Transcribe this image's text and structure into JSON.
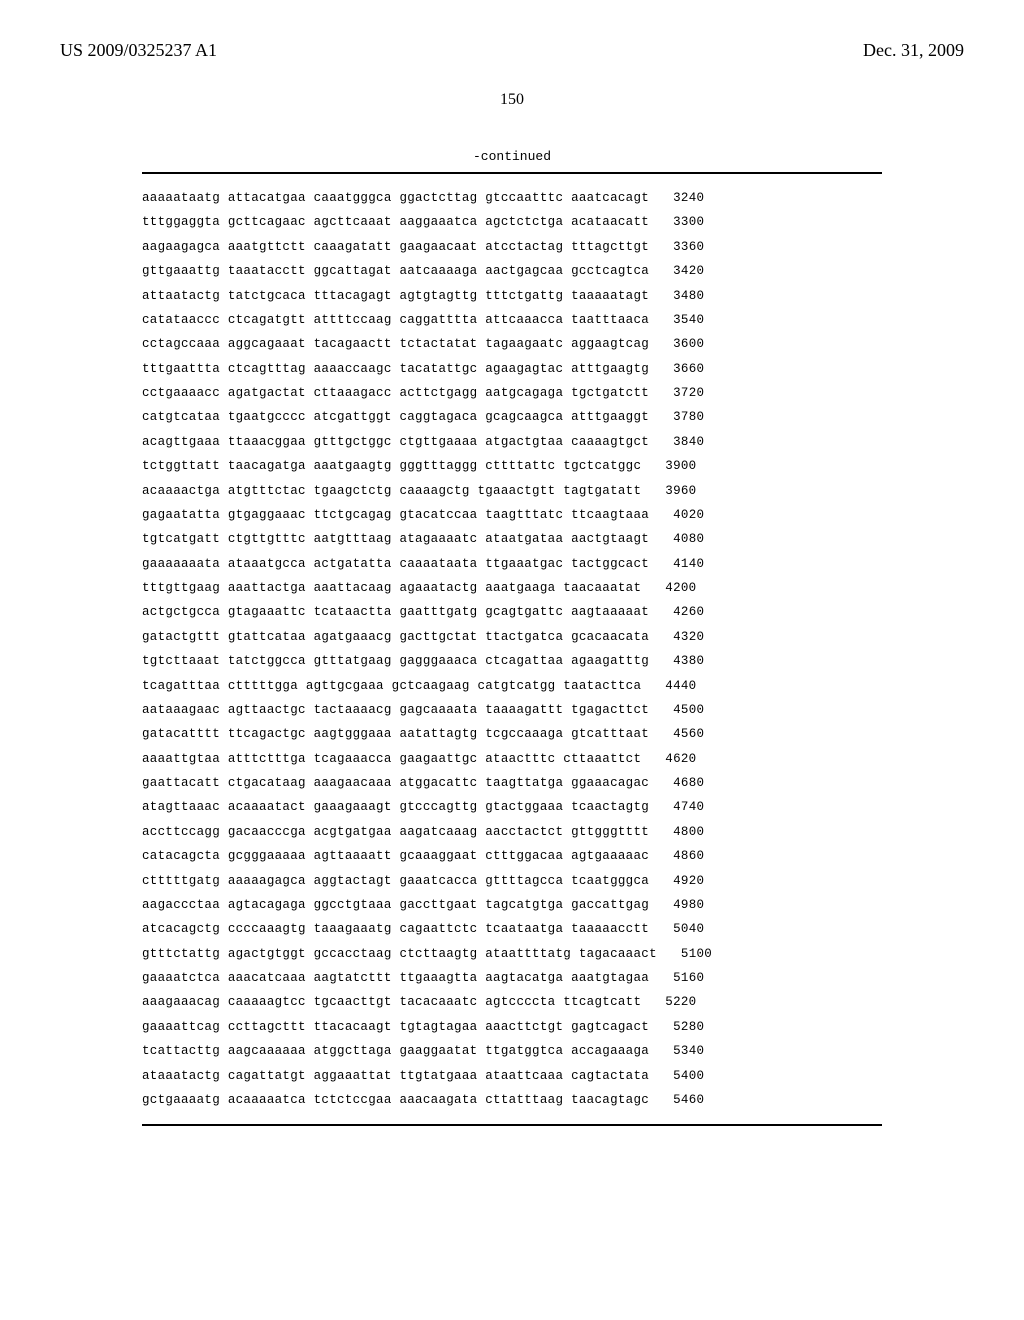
{
  "header": {
    "pub_number": "US 2009/0325237 A1",
    "pub_date": "Dec. 31, 2009"
  },
  "page_number": "150",
  "continued_label": "-continued",
  "sequence": [
    {
      "text": "aaaaataatg attacatgaa caaatgggca ggactcttag gtccaatttc aaatcacagt",
      "num": "3240"
    },
    {
      "text": "tttggaggta gcttcagaac agcttcaaat aaggaaatca agctctctga acataacatt",
      "num": "3300"
    },
    {
      "text": "aagaagagca aaatgttctt caaagatatt gaagaacaat atcctactag tttagcttgt",
      "num": "3360"
    },
    {
      "text": "gttgaaattg taaatacctt ggcattagat aatcaaaaga aactgagcaa gcctcagtca",
      "num": "3420"
    },
    {
      "text": "attaatactg tatctgcaca tttacagagt agtgtagttg tttctgattg taaaaatagt",
      "num": "3480"
    },
    {
      "text": "catataaccc ctcagatgtt attttccaag caggatttta attcaaacca taatttaaca",
      "num": "3540"
    },
    {
      "text": "cctagccaaa aggcagaaat tacagaactt tctactatat tagaagaatc aggaagtcag",
      "num": "3600"
    },
    {
      "text": "tttgaattta ctcagtttag aaaaccaagc tacatattgc agaagagtac atttgaagtg",
      "num": "3660"
    },
    {
      "text": "cctgaaaacc agatgactat cttaaagacc acttctgagg aatgcagaga tgctgatctt",
      "num": "3720"
    },
    {
      "text": "catgtcataa tgaatgcccc atcgattggt caggtagaca gcagcaagca atttgaaggt",
      "num": "3780"
    },
    {
      "text": "acagttgaaa ttaaacggaa gtttgctggc ctgttgaaaa atgactgtaa caaaagtgct",
      "num": "3840"
    },
    {
      "text": "tctggttatt taacagatga aaatgaagtg gggtttaggg cttttattc tgctcatggc",
      "num": "3900"
    },
    {
      "text": "acaaaactga atgtttctac tgaagctctg caaaagctg tgaaactgtt tagtgatatt",
      "num": "3960"
    },
    {
      "text": "gagaatatta gtgaggaaac ttctgcagag gtacatccaa taagtttatc ttcaagtaaa",
      "num": "4020"
    },
    {
      "text": "tgtcatgatt ctgttgtttc aatgtttaag atagaaaatc ataatgataa aactgtaagt",
      "num": "4080"
    },
    {
      "text": "gaaaaaaata ataaatgcca actgatatta caaaataata ttgaaatgac tactggcact",
      "num": "4140"
    },
    {
      "text": "tttgttgaag aaattactga aaattacaag agaaatactg aaatgaaga taacaaatat",
      "num": "4200"
    },
    {
      "text": "actgctgcca gtagaaattc tcataactta gaatttgatg gcagtgattc aagtaaaaat",
      "num": "4260"
    },
    {
      "text": "gatactgttt gtattcataa agatgaaacg gacttgctat ttactgatca gcacaacata",
      "num": "4320"
    },
    {
      "text": "tgtcttaaat tatctggcca gtttatgaag gagggaaaca ctcagattaa agaagatttg",
      "num": "4380"
    },
    {
      "text": "tcagatttaa ctttttgga agttgcgaaa gctcaagaag catgtcatgg taatacttca",
      "num": "4440"
    },
    {
      "text": "aataaagaac agttaactgc tactaaaacg gagcaaaata taaaagattt tgagacttct",
      "num": "4500"
    },
    {
      "text": "gatacatttt ttcagactgc aagtgggaaa aatattagtg tcgccaaaga gtcatttaat",
      "num": "4560"
    },
    {
      "text": "aaaattgtaa atttctttga tcagaaacca gaagaattgc ataactttc cttaaattct",
      "num": "4620"
    },
    {
      "text": "gaattacatt ctgacataag aaagaacaaa atggacattc taagttatga ggaaacagac",
      "num": "4680"
    },
    {
      "text": "atagttaaac acaaaatact gaaagaaagt gtcccagttg gtactggaaa tcaactagtg",
      "num": "4740"
    },
    {
      "text": "accttccagg gacaacccga acgtgatgaa aagatcaaag aacctactct gttgggtttt",
      "num": "4800"
    },
    {
      "text": "catacagcta gcgggaaaaa agttaaaatt gcaaaggaat ctttggacaa agtgaaaaac",
      "num": "4860"
    },
    {
      "text": "ctttttgatg aaaaagagca aggtactagt gaaatcacca gttttagcca tcaatgggca",
      "num": "4920"
    },
    {
      "text": "aagaccctaa agtacagaga ggcctgtaaa gaccttgaat tagcatgtga gaccattgag",
      "num": "4980"
    },
    {
      "text": "atcacagctg ccccaaagtg taaagaaatg cagaattctc tcaataatga taaaaacctt",
      "num": "5040"
    },
    {
      "text": "gtttctattg agactgtggt gccacctaag ctcttaagtg ataattttatg tagacaaact",
      "num": "5100"
    },
    {
      "text": "gaaaatctca aaacatcaaa aagtatcttt ttgaaagtta aagtacatga aaatgtagaa",
      "num": "5160"
    },
    {
      "text": "aaagaaacag caaaaagtcc tgcaacttgt tacacaaatc agtccccta ttcagtcatt",
      "num": "5220"
    },
    {
      "text": "gaaaattcag ccttagcttt ttacacaagt tgtagtagaa aaacttctgt gagtcagact",
      "num": "5280"
    },
    {
      "text": "tcattacttg aagcaaaaaa atggcttaga gaaggaatat ttgatggtca accagaaaga",
      "num": "5340"
    },
    {
      "text": "ataaatactg cagattatgt aggaaattat ttgtatgaaa ataattcaaa cagtactata",
      "num": "5400"
    },
    {
      "text": "gctgaaaatg acaaaaatca tctctccgaa aaacaagata cttatttaag taacagtagc",
      "num": "5460"
    }
  ]
}
